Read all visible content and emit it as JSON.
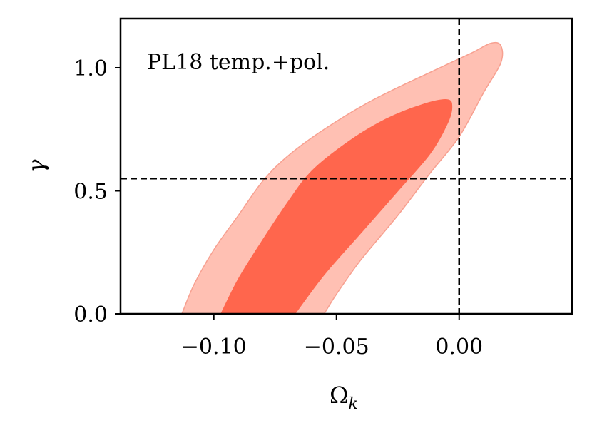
{
  "chart_data": {
    "type": "contour",
    "title": "",
    "annotation": "PL18 temp.+pol.",
    "xlabel": "Ω",
    "xlabel_sub": "k",
    "ylabel": "γ",
    "xlim": [
      -0.138,
      0.046
    ],
    "ylim": [
      0.0,
      1.2
    ],
    "xticks": [
      -0.1,
      -0.05,
      0.0
    ],
    "xtick_labels": [
      "−0.10",
      "−0.05",
      "0.00"
    ],
    "yticks": [
      0.0,
      0.5,
      1.0
    ],
    "ytick_labels": [
      "0.0",
      "0.5",
      "1.0"
    ],
    "grid": false,
    "reference_lines": {
      "x": 0.0,
      "y": 0.55,
      "style": "dashed"
    },
    "series": [
      {
        "level": "outer",
        "color": "#FFC0B3",
        "edge_color": "#F7A090",
        "points": [
          [
            -0.113,
            0.0
          ],
          [
            -0.108,
            0.12
          ],
          [
            -0.1,
            0.26
          ],
          [
            -0.09,
            0.4
          ],
          [
            -0.08,
            0.54
          ],
          [
            -0.07,
            0.64
          ],
          [
            -0.055,
            0.75
          ],
          [
            -0.035,
            0.87
          ],
          [
            -0.01,
            0.99
          ],
          [
            0.005,
            1.06
          ],
          [
            0.013,
            1.1
          ],
          [
            0.017,
            1.09
          ],
          [
            0.017,
            1.02
          ],
          [
            0.01,
            0.9
          ],
          [
            0.0,
            0.72
          ],
          [
            -0.012,
            0.57
          ],
          [
            -0.025,
            0.4
          ],
          [
            -0.04,
            0.22
          ],
          [
            -0.05,
            0.08
          ],
          [
            -0.055,
            0.0
          ]
        ]
      },
      {
        "level": "inner",
        "color": "#FF664D",
        "edge_color": "#FF664D",
        "points": [
          [
            -0.097,
            0.0
          ],
          [
            -0.09,
            0.14
          ],
          [
            -0.08,
            0.3
          ],
          [
            -0.07,
            0.45
          ],
          [
            -0.06,
            0.58
          ],
          [
            -0.045,
            0.7
          ],
          [
            -0.03,
            0.79
          ],
          [
            -0.015,
            0.85
          ],
          [
            -0.005,
            0.87
          ],
          [
            -0.003,
            0.84
          ],
          [
            -0.005,
            0.77
          ],
          [
            -0.012,
            0.65
          ],
          [
            -0.025,
            0.5
          ],
          [
            -0.04,
            0.33
          ],
          [
            -0.055,
            0.16
          ],
          [
            -0.067,
            0.0
          ]
        ]
      }
    ]
  }
}
